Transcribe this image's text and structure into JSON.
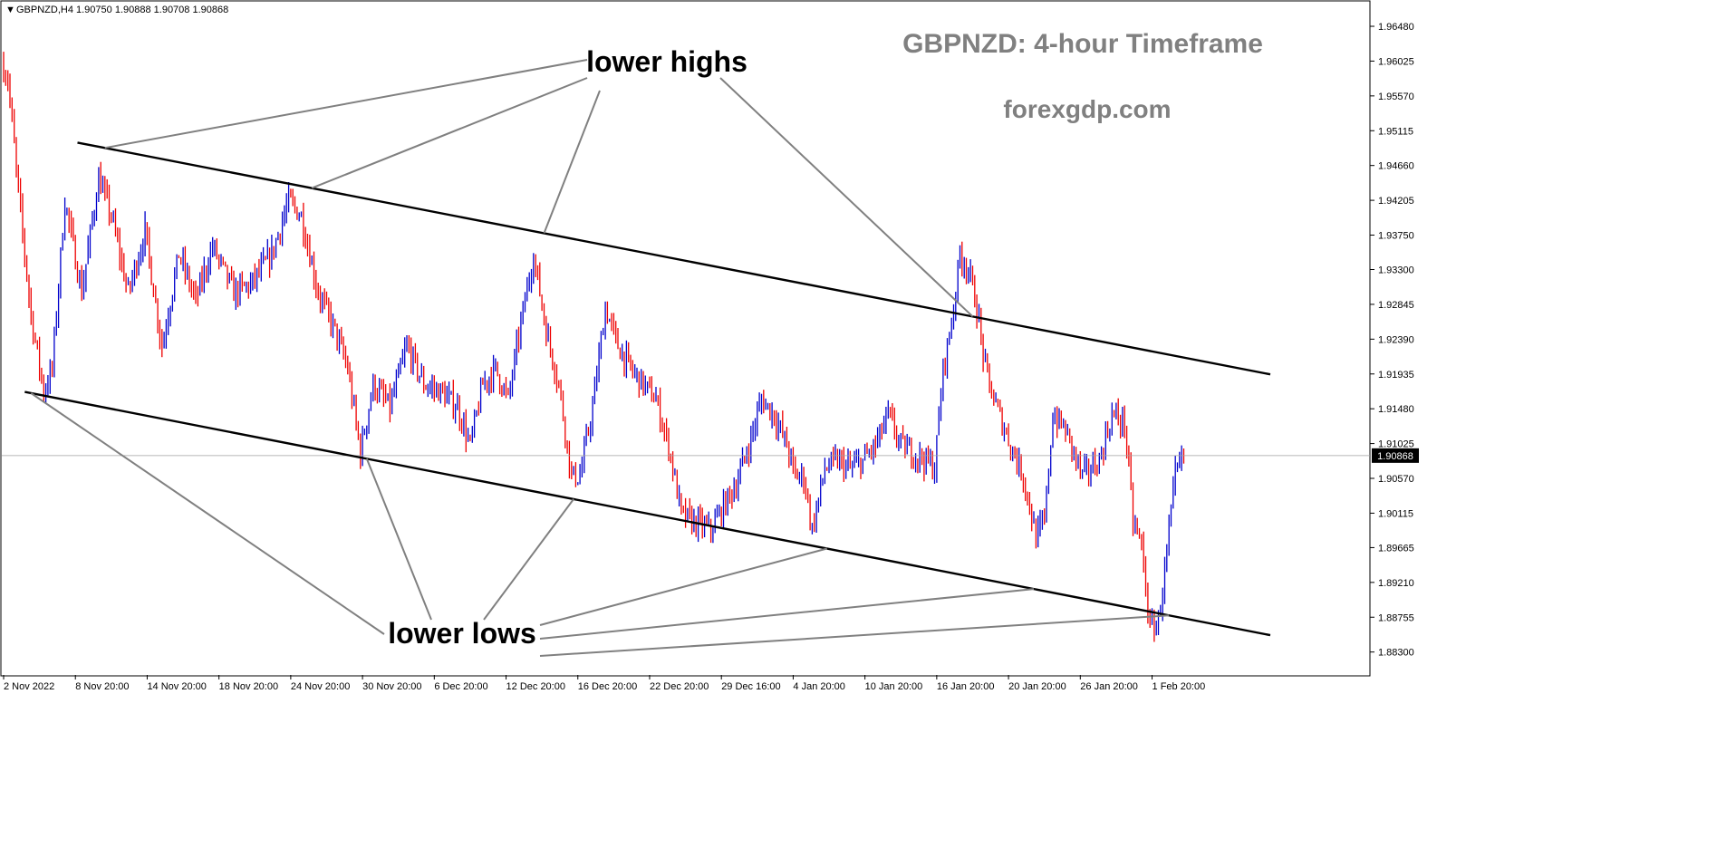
{
  "header": {
    "symbol_line": "GBPNZD,H4  1.90750 1.90888 1.90708 1.90868"
  },
  "watermark": {
    "title": "GBPNZD: 4-hour Timeframe",
    "site": "forexgdp.com"
  },
  "annotations": {
    "highs_label": "lower highs",
    "lows_label": "lower lows"
  },
  "colors": {
    "bull": "#0000cc",
    "bear": "#ee0000",
    "channel": "#000000",
    "pointer": "#808080",
    "watermark": "#808080",
    "price_line": "#a0a0a0"
  },
  "chart_data": {
    "type": "candlestick",
    "symbol": "GBPNZD",
    "timeframe": "H4",
    "last_price": "1.90868",
    "ohlc_last": {
      "open": 1.9075,
      "high": 1.90888,
      "low": 1.90708,
      "close": 1.90868
    },
    "ylim": [
      1.88,
      1.968
    ],
    "y_ticks": [
      "1.96480",
      "1.96025",
      "1.95570",
      "1.95115",
      "1.94660",
      "1.94205",
      "1.93750",
      "1.93300",
      "1.92845",
      "1.92390",
      "1.91935",
      "1.91480",
      "1.91025",
      "1.90570",
      "1.90115",
      "1.89665",
      "1.89210",
      "1.88755",
      "1.88300"
    ],
    "x_ticks": [
      "2 Nov 2022",
      "8 Nov 20:00",
      "14 Nov 20:00",
      "18 Nov 20:00",
      "24 Nov 20:00",
      "30 Nov 20:00",
      "6 Dec 20:00",
      "12 Dec 20:00",
      "16 Dec 20:00",
      "22 Dec 20:00",
      "29 Dec 16:00",
      "4 Jan 20:00",
      "10 Jan 20:00",
      "16 Jan 20:00",
      "20 Jan 20:00",
      "26 Jan 20:00",
      "1 Feb 20:00"
    ],
    "x_tick_index": [
      0,
      34,
      68,
      102,
      136,
      170,
      204,
      238,
      272,
      306,
      340,
      374,
      408,
      442,
      476,
      510,
      544
    ],
    "bar_count": 560,
    "price_path": [
      [
        0,
        1.96
      ],
      [
        3,
        1.958
      ],
      [
        8,
        1.943
      ],
      [
        14,
        1.927
      ],
      [
        20,
        1.917
      ],
      [
        24,
        1.92
      ],
      [
        30,
        1.942
      ],
      [
        38,
        1.93
      ],
      [
        46,
        1.945
      ],
      [
        52,
        1.94
      ],
      [
        60,
        1.93
      ],
      [
        68,
        1.938
      ],
      [
        76,
        1.923
      ],
      [
        84,
        1.935
      ],
      [
        92,
        1.929
      ],
      [
        100,
        1.936
      ],
      [
        110,
        1.93
      ],
      [
        118,
        1.931
      ],
      [
        128,
        1.935
      ],
      [
        136,
        1.942
      ],
      [
        142,
        1.94
      ],
      [
        150,
        1.93
      ],
      [
        158,
        1.925
      ],
      [
        164,
        1.92
      ],
      [
        170,
        1.909
      ],
      [
        176,
        1.918
      ],
      [
        184,
        1.915
      ],
      [
        192,
        1.923
      ],
      [
        200,
        1.918
      ],
      [
        208,
        1.917
      ],
      [
        216,
        1.915
      ],
      [
        222,
        1.91
      ],
      [
        228,
        1.918
      ],
      [
        234,
        1.92
      ],
      [
        240,
        1.916
      ],
      [
        246,
        1.926
      ],
      [
        252,
        1.935
      ],
      [
        258,
        1.925
      ],
      [
        264,
        1.918
      ],
      [
        270,
        1.906
      ],
      [
        274,
        1.906
      ],
      [
        280,
        1.915
      ],
      [
        286,
        1.928
      ],
      [
        292,
        1.923
      ],
      [
        298,
        1.92
      ],
      [
        304,
        1.918
      ],
      [
        310,
        1.916
      ],
      [
        316,
        1.91
      ],
      [
        322,
        1.901
      ],
      [
        328,
        1.9
      ],
      [
        336,
        1.899
      ],
      [
        342,
        1.902
      ],
      [
        348,
        1.905
      ],
      [
        354,
        1.91
      ],
      [
        360,
        1.916
      ],
      [
        366,
        1.914
      ],
      [
        372,
        1.91
      ],
      [
        376,
        1.906
      ],
      [
        380,
        1.906
      ],
      [
        384,
        1.899
      ],
      [
        390,
        1.907
      ],
      [
        396,
        1.908
      ],
      [
        402,
        1.907
      ],
      [
        408,
        1.908
      ],
      [
        414,
        1.91
      ],
      [
        420,
        1.914
      ],
      [
        426,
        1.91
      ],
      [
        432,
        1.909
      ],
      [
        438,
        1.908
      ],
      [
        442,
        1.907
      ],
      [
        446,
        1.92
      ],
      [
        450,
        1.926
      ],
      [
        454,
        1.935
      ],
      [
        458,
        1.933
      ],
      [
        462,
        1.928
      ],
      [
        466,
        1.92
      ],
      [
        470,
        1.916
      ],
      [
        474,
        1.913
      ],
      [
        478,
        1.91
      ],
      [
        484,
        1.906
      ],
      [
        490,
        1.898
      ],
      [
        494,
        1.9
      ],
      [
        498,
        1.914
      ],
      [
        504,
        1.912
      ],
      [
        512,
        1.906
      ],
      [
        520,
        1.908
      ],
      [
        526,
        1.914
      ],
      [
        532,
        1.913
      ],
      [
        536,
        1.9
      ],
      [
        540,
        1.897
      ],
      [
        544,
        1.886
      ],
      [
        548,
        1.887
      ],
      [
        552,
        1.896
      ],
      [
        556,
        1.906
      ],
      [
        560,
        1.9087
      ]
    ],
    "channel_upper": {
      "from": {
        "bar": 35,
        "price": 1.9496
      },
      "to": {
        "bar": 600,
        "price": 1.9193
      }
    },
    "channel_lower": {
      "from": {
        "bar": 10,
        "price": 1.917
      },
      "to": {
        "bar": 600,
        "price": 1.8852
      }
    },
    "legend": "none",
    "grid": false
  }
}
